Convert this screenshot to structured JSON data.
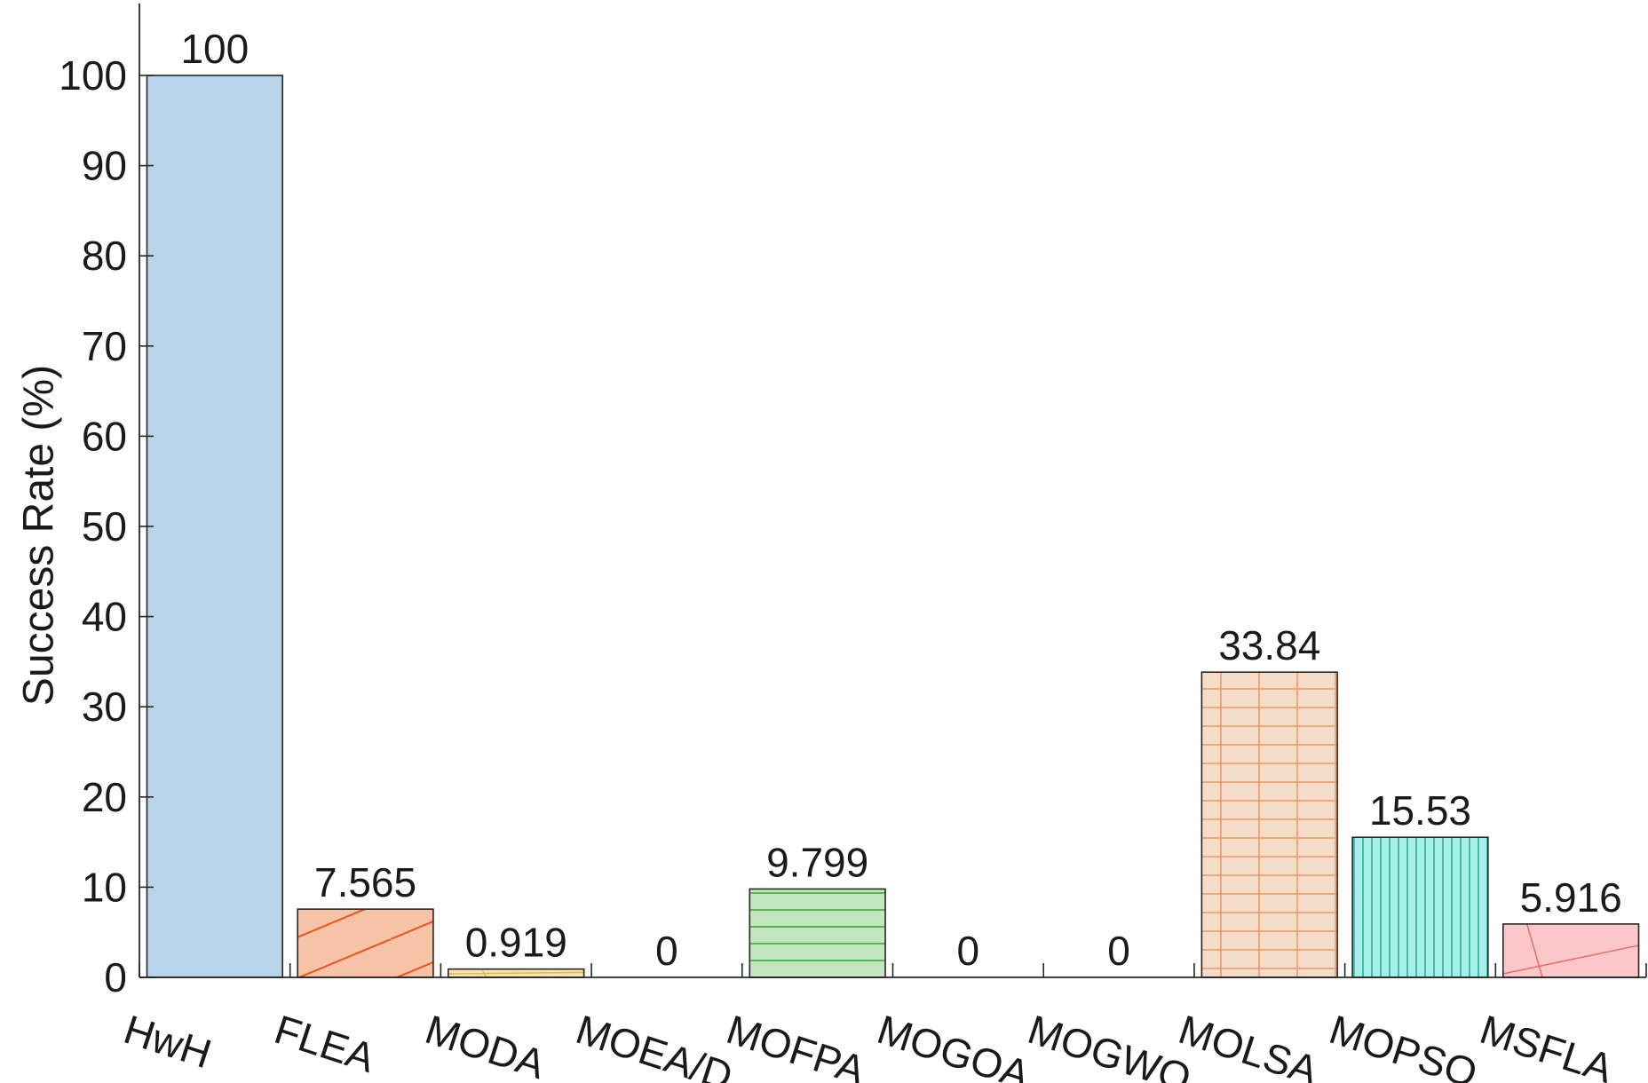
{
  "chart_data": {
    "type": "bar",
    "title": "",
    "xlabel": "",
    "ylabel": "Success Rate (%)",
    "ylim": [
      0,
      108
    ],
    "yticks": [
      0,
      10,
      20,
      30,
      40,
      50,
      60,
      70,
      80,
      90,
      100
    ],
    "categories": [
      "HwH",
      "FLEA",
      "MODA",
      "MOEA/D",
      "MOFPA",
      "MOGOA",
      "MOGWO",
      "MOLSA",
      "MOPSO",
      "MSFLA"
    ],
    "values": [
      100,
      7.565,
      0.919,
      0,
      9.799,
      0,
      0,
      33.84,
      15.53,
      5.916
    ],
    "value_labels": [
      "100",
      "7.565",
      "0.919",
      "0",
      "9.799",
      "0",
      "0",
      "33.84",
      "15.53",
      "5.916"
    ],
    "bar_colors": [
      "#b8d4ea",
      "#f6c3a6",
      "#f7e5b0",
      "#e8e8e8",
      "#c2e6be",
      "#e8e8e8",
      "#e8e8e8",
      "#f4dcc8",
      "#a8f1e8",
      "#fbc7c9"
    ],
    "hatch_colors": [
      "",
      "#e8541c",
      "#e6b84a",
      "",
      "#4cae48",
      "",
      "",
      "#ee9660",
      "#27a795",
      "#e86a6a"
    ],
    "hatch_patterns": [
      "none",
      "diagonal",
      "sparse-cross",
      "none",
      "horizontal",
      "none",
      "none",
      "grid",
      "vertical",
      "sparse-cross"
    ],
    "grid": false,
    "legend": "none"
  }
}
